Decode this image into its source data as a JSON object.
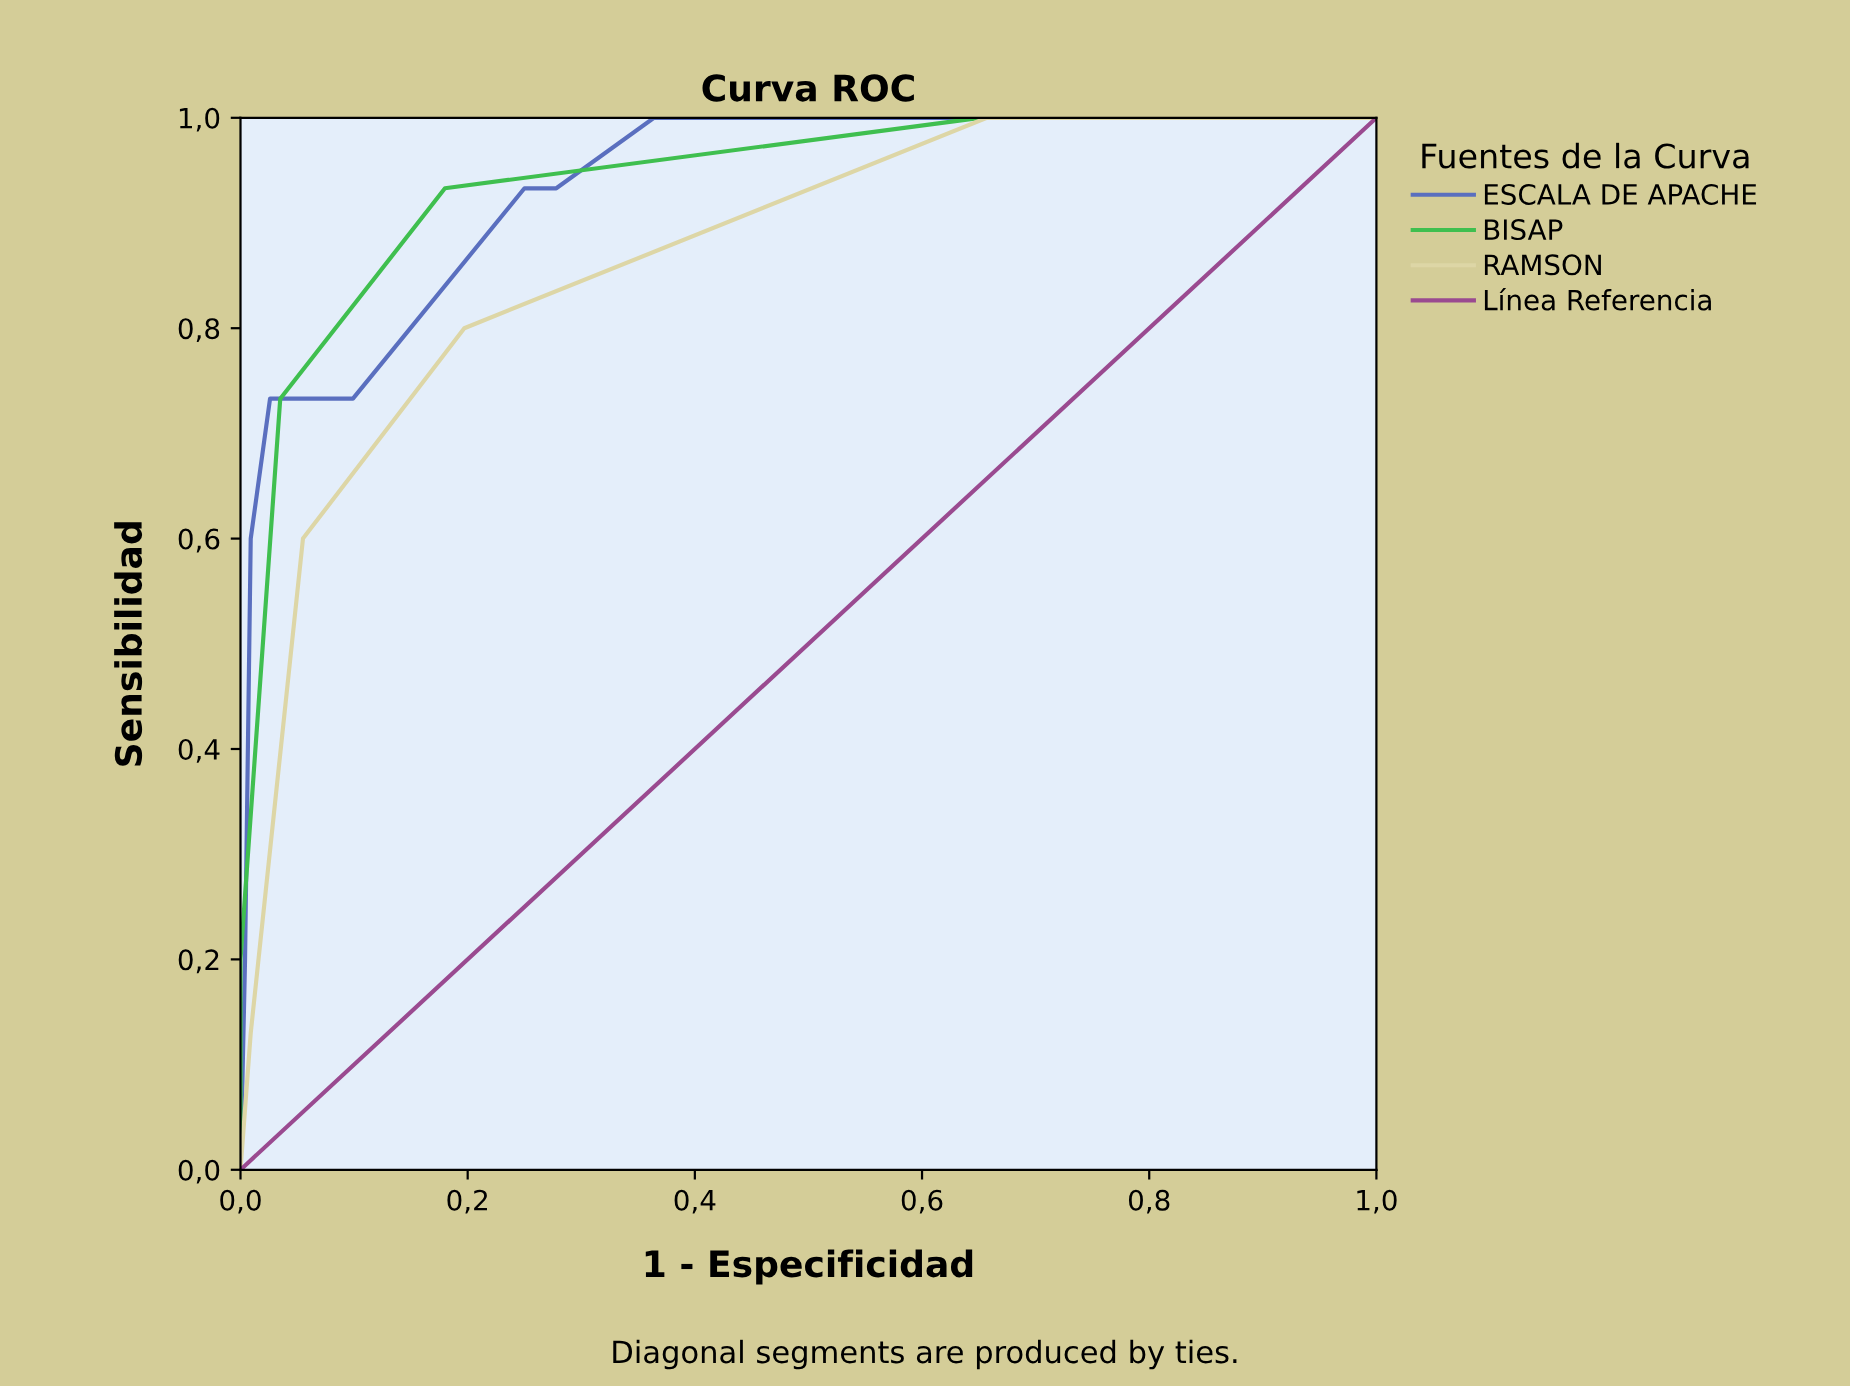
{
  "chart_data": {
    "type": "line",
    "title": "Curva ROC",
    "xlabel": "1 - Especificidad",
    "ylabel": "Sensibilidad",
    "legend_title": "Fuentes de la Curva",
    "legend": "right",
    "grid": false,
    "xlim": [
      0,
      1
    ],
    "ylim": [
      0,
      1
    ],
    "xticks": [
      {
        "value": 0,
        "label": "0,0"
      },
      {
        "value": 0.2,
        "label": "0,2"
      },
      {
        "value": 0.4,
        "label": "0,4"
      },
      {
        "value": 0.6,
        "label": "0,6"
      },
      {
        "value": 0.8,
        "label": "0,8"
      },
      {
        "value": 1,
        "label": "1,0"
      }
    ],
    "yticks": [
      {
        "value": 0,
        "label": "0,0"
      },
      {
        "value": 0.2,
        "label": "0,2"
      },
      {
        "value": 0.4,
        "label": "0,4"
      },
      {
        "value": 0.6,
        "label": "0,6"
      },
      {
        "value": 0.8,
        "label": "0,8"
      },
      {
        "value": 1,
        "label": "1,0"
      }
    ],
    "series": [
      {
        "name": "ESCALA DE APACHE",
        "color": "#5a6fbf",
        "x": [
          0,
          0.004,
          0.009,
          0.026,
          0.099,
          0.25,
          0.278,
          0.364,
          1
        ],
        "values": [
          0,
          0.2,
          0.6,
          0.733,
          0.733,
          0.933,
          0.933,
          1,
          1
        ]
      },
      {
        "name": "BISAP",
        "color": "#3fbf4f",
        "x": [
          0,
          0,
          0.035,
          0.18,
          0.651,
          1
        ],
        "values": [
          0,
          0.2,
          0.733,
          0.933,
          1,
          1
        ]
      },
      {
        "name": "RAMSON",
        "color": "#ddd6a6",
        "x": [
          0,
          0.009,
          0.055,
          0.197,
          0.657,
          1
        ],
        "values": [
          0,
          0.13,
          0.6,
          0.8,
          1,
          1
        ]
      },
      {
        "name": "Línea Referencia",
        "color": "#9a4a90",
        "x": [
          0,
          1
        ],
        "values": [
          0,
          1
        ]
      }
    ],
    "annotations": [
      "Diagonal segments are produced by ties."
    ]
  }
}
